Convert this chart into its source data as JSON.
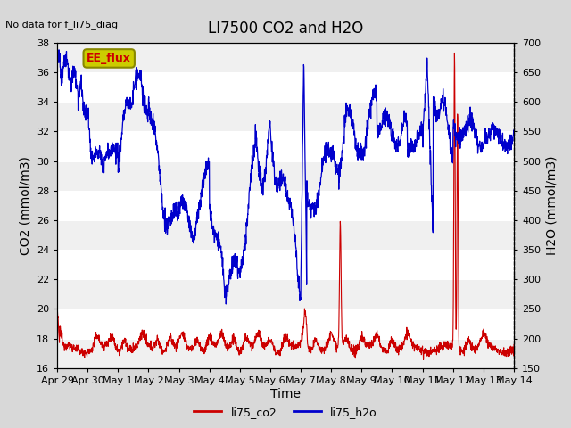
{
  "title": "LI7500 CO2 and H2O",
  "top_left_text": "No data for f_li75_diag",
  "xlabel": "Time",
  "ylabel_left": "CO2 (mmol/m3)",
  "ylabel_right": "H2O (mmol/m3)",
  "ylim_left": [
    16,
    38
  ],
  "ylim_right": [
    150,
    700
  ],
  "yticks_left": [
    16,
    18,
    20,
    22,
    24,
    26,
    28,
    30,
    32,
    34,
    36,
    38
  ],
  "yticks_right": [
    150,
    200,
    250,
    300,
    350,
    400,
    450,
    500,
    550,
    600,
    650,
    700
  ],
  "xtick_labels": [
    "Apr 29",
    "Apr 30",
    "May 1",
    "May 2",
    "May 3",
    "May 4",
    "May 5",
    "May 6",
    "May 7",
    "May 8",
    "May 9",
    "May 10",
    "May 11",
    "May 12",
    "May 13",
    "May 14"
  ],
  "xtick_positions": [
    0,
    1,
    2,
    3,
    4,
    5,
    6,
    7,
    8,
    9,
    10,
    11,
    12,
    13,
    14,
    15
  ],
  "co2_color": "#cc0000",
  "h2o_color": "#0000cc",
  "legend_co2_label": "li75_co2",
  "legend_h2o_label": "li75_h2o",
  "ee_flux_label": "EE_flux",
  "ee_flux_bg": "#cccc00",
  "ee_flux_text_color": "#cc0000",
  "plot_bg_alternating_light": "#f0f0f0",
  "plot_bg_alternating_dark": "#e0e0e0",
  "grid_color": "#ffffff",
  "title_fontsize": 12,
  "axis_label_fontsize": 10,
  "tick_fontsize": 8,
  "fig_bg": "#d8d8d8"
}
